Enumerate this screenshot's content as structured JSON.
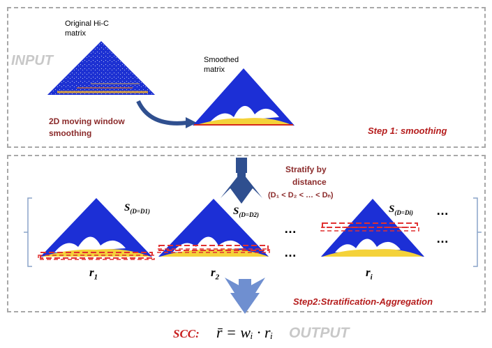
{
  "input": {
    "label": "INPUT",
    "original_label_line1": "Original Hi-C",
    "original_label_line2": "matrix",
    "smoothed_label_line1": "Smoothed",
    "smoothed_label_line2": "matrix",
    "method_line1": "2D moving window",
    "method_line2": "smoothing",
    "step_label": "Step 1: smoothing"
  },
  "stratify": {
    "line1": "Stratify by",
    "line2": "distance",
    "line3": "(D₁ < D₂ < … < Dₙ)"
  },
  "strata": [
    {
      "s_label": "S",
      "s_sub": "(D=D1)",
      "r_label": "r",
      "r_sub": "1"
    },
    {
      "s_label": "S",
      "s_sub": "(D=D2)",
      "r_label": "r",
      "r_sub": "2"
    },
    {
      "s_label": "S",
      "s_sub": "(D=Di)",
      "r_label": "r",
      "r_sub": "i"
    }
  ],
  "ellipses": [
    "…",
    "…",
    "…",
    "…"
  ],
  "step2_label": "Step2:Stratification-Aggregation",
  "output": {
    "scc_label": "SCC:",
    "formula": "r̄ = wᵢ · rᵢ",
    "output_label": "OUTPUT"
  },
  "colors": {
    "heatmap_blue": "#1c2fd6",
    "heatmap_yellow": "#f4d23a",
    "heatmap_red": "#d62a1a",
    "dashed_red": "#e03030",
    "arrow_blue": "#2f4f8f",
    "arrow_light": "#6f8fd0",
    "step_red": "#b51c1c"
  }
}
